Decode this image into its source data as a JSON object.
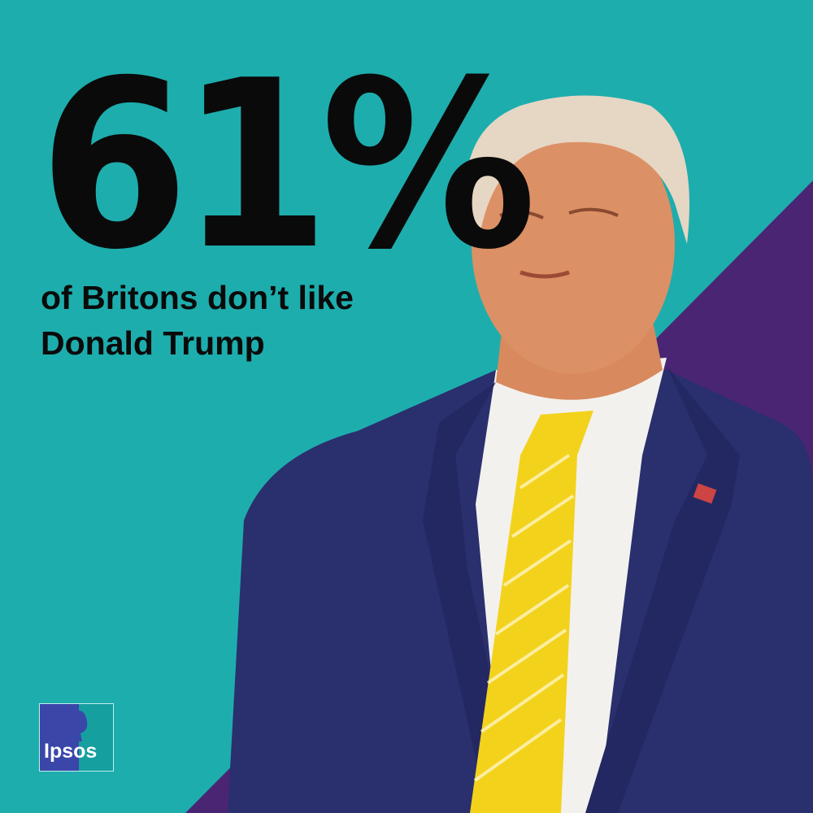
{
  "headline": {
    "stat": "61%",
    "subtitle": "of Britons don’t like Donald Trump"
  },
  "logo": {
    "text": "Ipsos"
  },
  "colors": {
    "background": "#1eadad",
    "accent_triangle": "#4a2574",
    "text": "#0a0a0a",
    "suit": "#2a2f6e",
    "tie": "#f3d21c"
  },
  "photo": {
    "subject": "Donald Trump"
  }
}
